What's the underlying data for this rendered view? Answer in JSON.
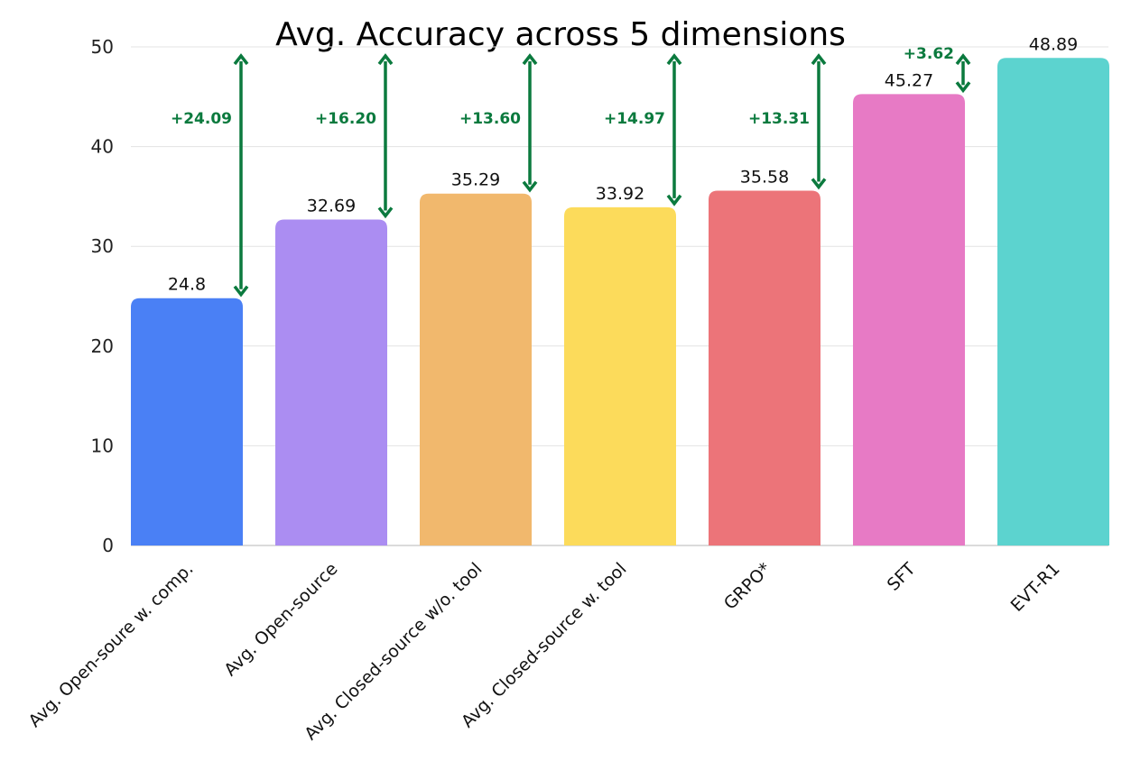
{
  "chart_data": {
    "type": "bar",
    "title": "Avg. Accuracy across 5 dimensions",
    "xlabel": "",
    "ylabel": "",
    "ylim": [
      0,
      50
    ],
    "yticks": [
      0,
      10,
      20,
      30,
      40,
      50
    ],
    "grid": true,
    "categories": [
      "Avg. Open-soure w. comp.",
      "Avg. Open-source",
      "Avg. Closed-source w/o. tool",
      "Avg. Closed-source w. tool",
      "GRPO*",
      "SFT",
      "EVT-R1"
    ],
    "values": [
      24.8,
      32.69,
      35.29,
      33.92,
      35.58,
      45.27,
      48.89
    ],
    "value_labels": [
      "24.8",
      "32.69",
      "35.29",
      "33.92",
      "35.58",
      "45.27",
      "48.89"
    ],
    "colors": [
      "#4a80f5",
      "#ab8df2",
      "#f1b86d",
      "#fcdb5b",
      "#ec7479",
      "#e77ac5",
      "#5cd3cf"
    ],
    "annotations": {
      "color": "#0b7a3e",
      "reference_value": 48.89,
      "items": [
        {
          "from": 24.8,
          "label": "+24.09"
        },
        {
          "from": 32.69,
          "label": "+16.20"
        },
        {
          "from": 35.29,
          "label": "+13.60"
        },
        {
          "from": 33.92,
          "label": "+14.97"
        },
        {
          "from": 35.58,
          "label": "+13.31"
        },
        {
          "from": 45.27,
          "label": "+3.62"
        }
      ]
    }
  }
}
